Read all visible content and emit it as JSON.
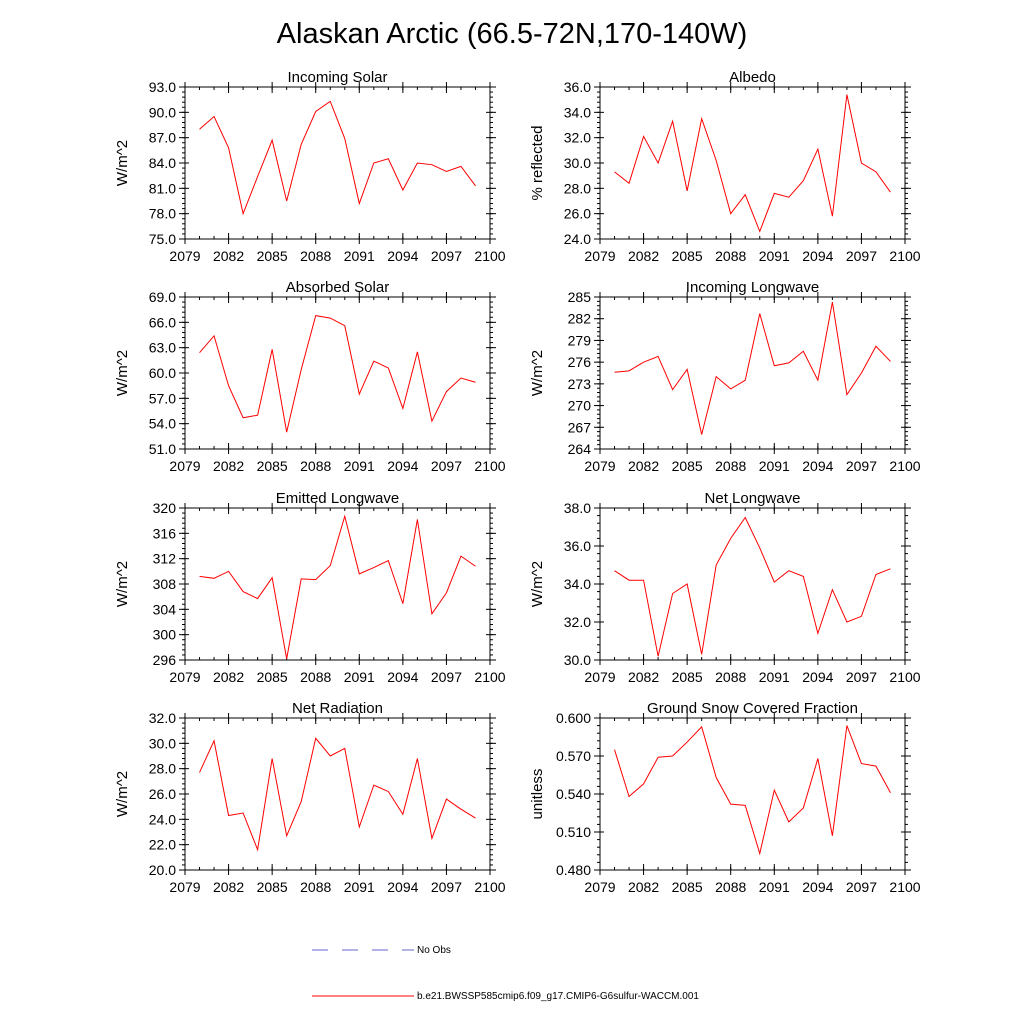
{
  "title": "Alaskan Arctic (66.5-72N,170-140W)",
  "legend": [
    {
      "label": "No Obs",
      "color": "#6666cc",
      "style": "dashed"
    },
    {
      "label": "b.e21.BWSSP585cmip6.f09_g17.CMIP6-G6sulfur-WACCM.001",
      "color": "#ff0000",
      "style": "solid"
    }
  ],
  "chart_data": [
    {
      "type": "line",
      "title": "Incoming Solar",
      "ylabel": "W/m^2",
      "xlim": [
        2079,
        2100
      ],
      "ylim": [
        75,
        93
      ],
      "x_ticks": [
        2079,
        2082,
        2085,
        2088,
        2091,
        2094,
        2097,
        2100
      ],
      "y_ticks": [
        75.0,
        78.0,
        81.0,
        84.0,
        87.0,
        90.0,
        93.0
      ],
      "y_decimals": 1,
      "x": [
        2080,
        2081,
        2082,
        2083,
        2084,
        2085,
        2086,
        2087,
        2088,
        2089,
        2090,
        2091,
        2092,
        2093,
        2094,
        2095,
        2096,
        2097,
        2098,
        2099
      ],
      "series": [
        {
          "color": "#ff0000",
          "values": [
            88.0,
            89.5,
            85.8,
            78.0,
            82.4,
            86.7,
            79.5,
            86.2,
            90.1,
            91.3,
            86.9,
            79.2,
            84.0,
            84.5,
            80.8,
            84.0,
            83.8,
            83.0,
            83.6,
            81.3
          ]
        }
      ]
    },
    {
      "type": "line",
      "title": "Albedo",
      "ylabel": "% reflected",
      "xlim": [
        2079,
        2100
      ],
      "ylim": [
        24,
        36
      ],
      "x_ticks": [
        2079,
        2082,
        2085,
        2088,
        2091,
        2094,
        2097,
        2100
      ],
      "y_ticks": [
        24.0,
        26.0,
        28.0,
        30.0,
        32.0,
        34.0,
        36.0
      ],
      "y_decimals": 1,
      "x": [
        2080,
        2081,
        2082,
        2083,
        2084,
        2085,
        2086,
        2087,
        2088,
        2089,
        2090,
        2091,
        2092,
        2093,
        2094,
        2095,
        2096,
        2097,
        2098,
        2099
      ],
      "series": [
        {
          "color": "#ff0000",
          "values": [
            29.3,
            28.4,
            32.1,
            30.0,
            33.3,
            27.8,
            33.5,
            30.2,
            26.0,
            27.5,
            24.6,
            27.6,
            27.3,
            28.6,
            31.1,
            25.8,
            35.4,
            30.0,
            29.3,
            27.7
          ]
        }
      ]
    },
    {
      "type": "line",
      "title": "Absorbed Solar",
      "ylabel": "W/m^2",
      "xlim": [
        2079,
        2100
      ],
      "ylim": [
        51,
        69
      ],
      "x_ticks": [
        2079,
        2082,
        2085,
        2088,
        2091,
        2094,
        2097,
        2100
      ],
      "y_ticks": [
        51.0,
        54.0,
        57.0,
        60.0,
        63.0,
        66.0,
        69.0
      ],
      "y_decimals": 1,
      "x": [
        2080,
        2081,
        2082,
        2083,
        2084,
        2085,
        2086,
        2087,
        2088,
        2089,
        2090,
        2091,
        2092,
        2093,
        2094,
        2095,
        2096,
        2097,
        2098,
        2099
      ],
      "series": [
        {
          "color": "#ff0000",
          "values": [
            62.4,
            64.4,
            58.5,
            54.7,
            55.0,
            62.8,
            53.0,
            60.4,
            66.8,
            66.5,
            65.6,
            57.5,
            61.4,
            60.6,
            55.8,
            62.5,
            54.3,
            57.8,
            59.4,
            58.9
          ]
        }
      ]
    },
    {
      "type": "line",
      "title": "Incoming Longwave",
      "ylabel": "W/m^2",
      "xlim": [
        2079,
        2100
      ],
      "ylim": [
        264,
        285
      ],
      "x_ticks": [
        2079,
        2082,
        2085,
        2088,
        2091,
        2094,
        2097,
        2100
      ],
      "y_ticks": [
        264,
        267,
        270,
        273,
        276,
        279,
        282,
        285
      ],
      "y_decimals": 0,
      "x": [
        2080,
        2081,
        2082,
        2083,
        2084,
        2085,
        2086,
        2087,
        2088,
        2089,
        2090,
        2091,
        2092,
        2093,
        2094,
        2095,
        2096,
        2097,
        2098,
        2099
      ],
      "series": [
        {
          "color": "#ff0000",
          "values": [
            274.6,
            274.8,
            276.0,
            276.8,
            272.2,
            275.0,
            266.0,
            274.0,
            272.3,
            273.5,
            282.7,
            275.5,
            275.9,
            277.5,
            273.5,
            284.3,
            271.5,
            274.5,
            278.2,
            276.1
          ]
        }
      ]
    },
    {
      "type": "line",
      "title": "Emitted Longwave",
      "ylabel": "W/m^2",
      "xlim": [
        2079,
        2100
      ],
      "ylim": [
        296,
        320
      ],
      "x_ticks": [
        2079,
        2082,
        2085,
        2088,
        2091,
        2094,
        2097,
        2100
      ],
      "y_ticks": [
        296,
        300,
        304,
        308,
        312,
        316,
        320
      ],
      "y_decimals": 0,
      "x": [
        2080,
        2081,
        2082,
        2083,
        2084,
        2085,
        2086,
        2087,
        2088,
        2089,
        2090,
        2091,
        2092,
        2093,
        2094,
        2095,
        2096,
        2097,
        2098,
        2099
      ],
      "series": [
        {
          "color": "#ff0000",
          "values": [
            309.2,
            308.9,
            310.0,
            306.8,
            305.7,
            309.0,
            296.2,
            308.8,
            308.7,
            310.9,
            318.7,
            309.6,
            310.6,
            311.7,
            304.9,
            318.2,
            303.3,
            306.6,
            312.4,
            310.8
          ]
        }
      ]
    },
    {
      "type": "line",
      "title": "Net Longwave",
      "ylabel": "W/m^2",
      "xlim": [
        2079,
        2100
      ],
      "ylim": [
        30,
        38
      ],
      "x_ticks": [
        2079,
        2082,
        2085,
        2088,
        2091,
        2094,
        2097,
        2100
      ],
      "y_ticks": [
        30.0,
        32.0,
        34.0,
        36.0,
        38.0
      ],
      "y_decimals": 1,
      "x": [
        2080,
        2081,
        2082,
        2083,
        2084,
        2085,
        2086,
        2087,
        2088,
        2089,
        2090,
        2091,
        2092,
        2093,
        2094,
        2095,
        2096,
        2097,
        2098,
        2099
      ],
      "series": [
        {
          "color": "#ff0000",
          "values": [
            34.7,
            34.2,
            34.2,
            30.2,
            33.5,
            34.0,
            30.3,
            35.0,
            36.4,
            37.5,
            35.9,
            34.1,
            34.7,
            34.4,
            31.4,
            33.7,
            32.0,
            32.3,
            34.5,
            34.8
          ]
        }
      ]
    },
    {
      "type": "line",
      "title": "Net Radiation",
      "ylabel": "W/m^2",
      "xlim": [
        2079,
        2100
      ],
      "ylim": [
        20,
        32
      ],
      "x_ticks": [
        2079,
        2082,
        2085,
        2088,
        2091,
        2094,
        2097,
        2100
      ],
      "y_ticks": [
        20.0,
        22.0,
        24.0,
        26.0,
        28.0,
        30.0,
        32.0
      ],
      "y_decimals": 1,
      "x": [
        2080,
        2081,
        2082,
        2083,
        2084,
        2085,
        2086,
        2087,
        2088,
        2089,
        2090,
        2091,
        2092,
        2093,
        2094,
        2095,
        2096,
        2097,
        2098,
        2099
      ],
      "series": [
        {
          "color": "#ff0000",
          "values": [
            27.7,
            30.2,
            24.3,
            24.5,
            21.6,
            28.8,
            22.7,
            25.4,
            30.4,
            29.0,
            29.6,
            23.4,
            26.7,
            26.2,
            24.4,
            28.8,
            22.5,
            25.6,
            24.8,
            24.1
          ]
        }
      ]
    },
    {
      "type": "line",
      "title": "Ground Snow Covered Fraction",
      "ylabel": "unitless",
      "xlim": [
        2079,
        2100
      ],
      "ylim": [
        0.48,
        0.6
      ],
      "x_ticks": [
        2079,
        2082,
        2085,
        2088,
        2091,
        2094,
        2097,
        2100
      ],
      "y_ticks": [
        0.48,
        0.51,
        0.54,
        0.57,
        0.6
      ],
      "y_decimals": 3,
      "x": [
        2080,
        2081,
        2082,
        2083,
        2084,
        2085,
        2086,
        2087,
        2088,
        2089,
        2090,
        2091,
        2092,
        2093,
        2094,
        2095,
        2096,
        2097,
        2098,
        2099
      ],
      "series": [
        {
          "color": "#ff0000",
          "values": [
            0.575,
            0.538,
            0.548,
            0.569,
            0.57,
            0.581,
            0.593,
            0.553,
            0.532,
            0.531,
            0.493,
            0.543,
            0.518,
            0.529,
            0.568,
            0.507,
            0.594,
            0.564,
            0.562,
            0.541
          ]
        }
      ]
    }
  ]
}
